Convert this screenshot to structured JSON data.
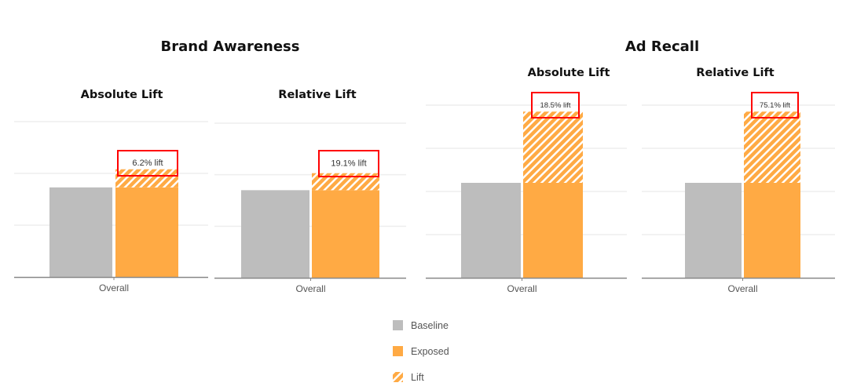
{
  "groups": [
    {
      "title": "Brand Awareness"
    },
    {
      "title": "Ad Recall"
    }
  ],
  "colors": {
    "baseline": "#bdbdbd",
    "exposed": "#ffaa44",
    "highlight": "#ff0000",
    "grid": "#eeeeee",
    "axis": "#888888"
  },
  "chart_data": [
    {
      "type": "bar",
      "group": "Brand Awareness",
      "title": "Absolute Lift",
      "categories": [
        "Overall"
      ],
      "series": [
        {
          "name": "Baseline",
          "values": [
            1.73
          ]
        },
        {
          "name": "Exposed",
          "values": [
            1.73
          ]
        },
        {
          "name": "Lift",
          "values": [
            0.35
          ]
        }
      ],
      "annotation": "6.2% lift",
      "ylim": [
        0,
        3
      ],
      "grid": true
    },
    {
      "type": "bar",
      "group": "Brand Awareness",
      "title": "Relative Lift",
      "categories": [
        "Overall"
      ],
      "series": [
        {
          "name": "Baseline",
          "values": [
            1.7
          ]
        },
        {
          "name": "Exposed",
          "values": [
            1.7
          ]
        },
        {
          "name": "Lift",
          "values": [
            0.33
          ]
        }
      ],
      "annotation": "19.1% lift",
      "ylim": [
        0,
        3
      ],
      "grid": true
    },
    {
      "type": "bar",
      "group": "Ad Recall",
      "title": "Absolute Lift",
      "categories": [
        "Overall"
      ],
      "series": [
        {
          "name": "Baseline",
          "values": [
            2.2
          ]
        },
        {
          "name": "Exposed",
          "values": [
            2.2
          ]
        },
        {
          "name": "Lift",
          "values": [
            1.65
          ]
        }
      ],
      "annotation": "18.5% lift",
      "ylim": [
        0,
        4
      ],
      "grid": true
    },
    {
      "type": "bar",
      "group": "Ad Recall",
      "title": "Relative Lift",
      "categories": [
        "Overall"
      ],
      "series": [
        {
          "name": "Baseline",
          "values": [
            2.2
          ]
        },
        {
          "name": "Exposed",
          "values": [
            2.2
          ]
        },
        {
          "name": "Lift",
          "values": [
            1.65
          ]
        }
      ],
      "annotation": "75.1% lift",
      "ylim": [
        0,
        4
      ],
      "grid": true
    }
  ],
  "legend": {
    "placement": "bottom-center",
    "items": [
      "Baseline",
      "Exposed",
      "Lift"
    ]
  }
}
